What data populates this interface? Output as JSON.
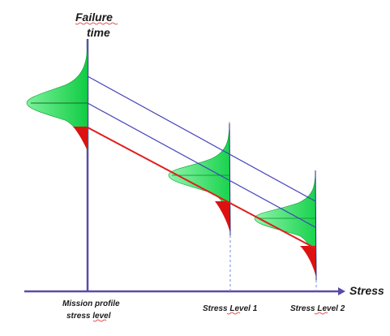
{
  "labels": {
    "y_axis_line1": "Failure",
    "y_axis_line2": "time",
    "x_axis": "Stress",
    "mission_line1": "Mission profile",
    "mission_line2": "stress level",
    "stress_level_1": "Stress Level 1",
    "stress_level_2": "Stress Level 2"
  },
  "colors": {
    "axis": "#5a4aa8",
    "lifeline": "#4444bb",
    "failure_line": "#e11d1d",
    "distribution_fill": "#22dd55",
    "distribution_tail": "#dd1111",
    "guide": "#6a8fd8"
  }
}
